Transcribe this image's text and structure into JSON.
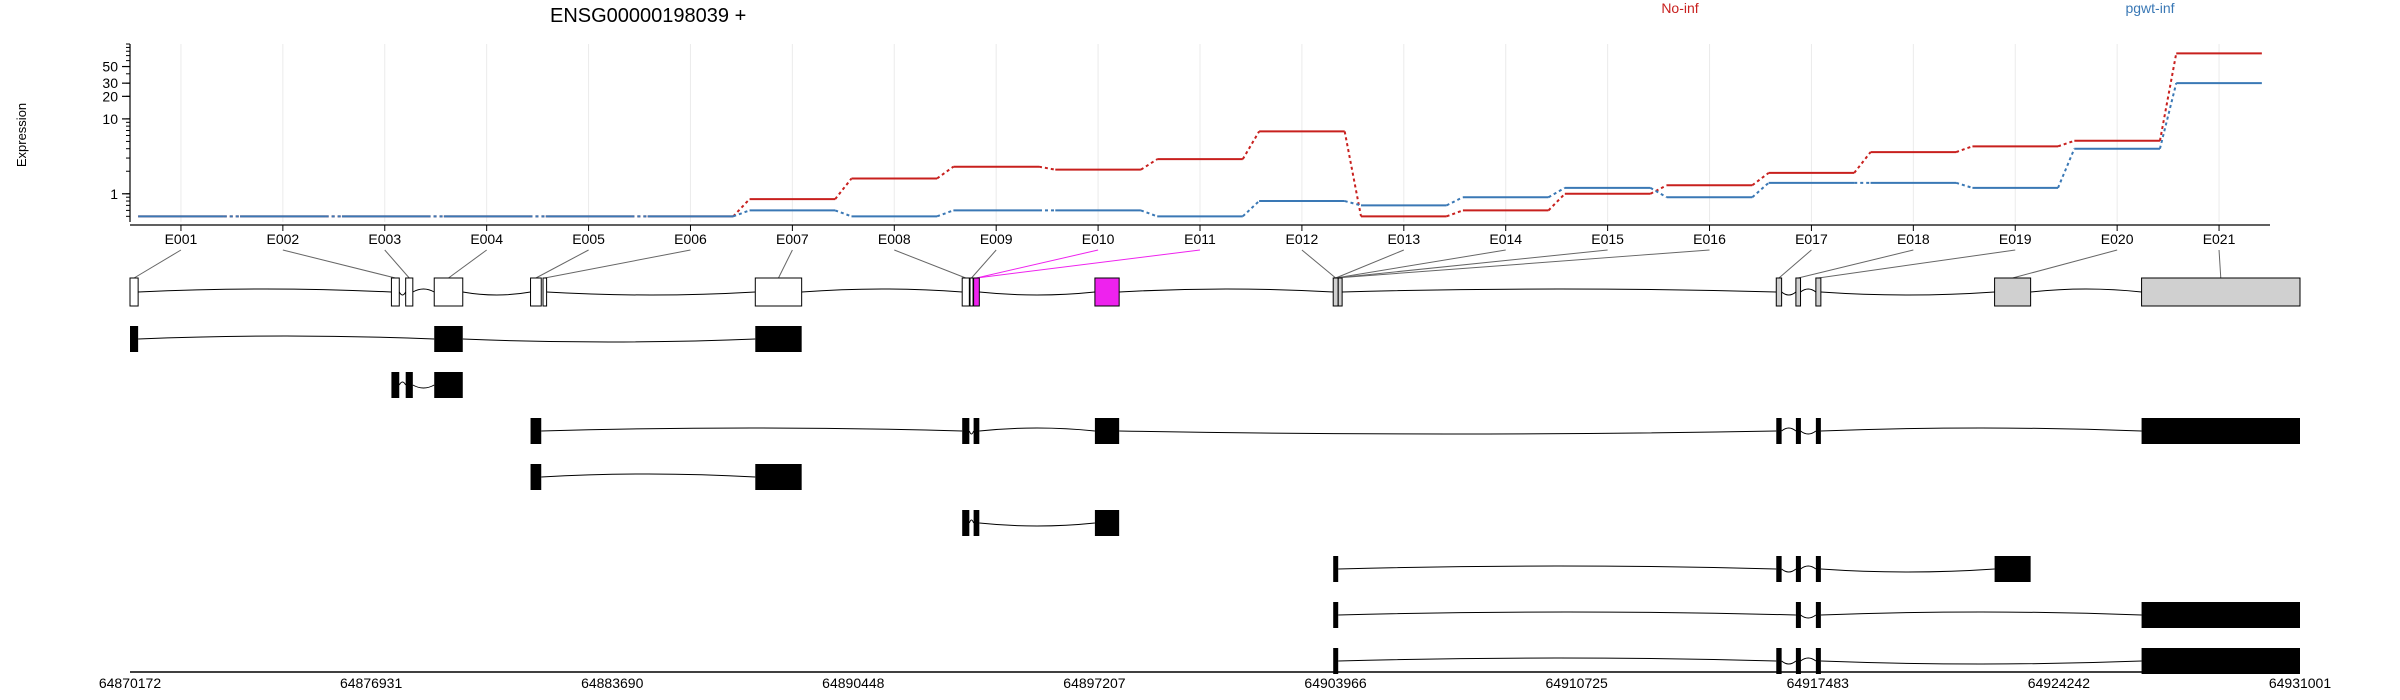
{
  "chart_data": {
    "type": "line",
    "title": "ENSG00000198039 +",
    "ylabel": "Expression",
    "y_scale": "log",
    "y_ticks": [
      1,
      10,
      20,
      30,
      50
    ],
    "y_range": [
      0.42,
      100
    ],
    "grid": true,
    "legend_position": "top",
    "exons": [
      "E001",
      "E002",
      "E003",
      "E004",
      "E005",
      "E006",
      "E007",
      "E008",
      "E009",
      "E010",
      "E011",
      "E012",
      "E013",
      "E014",
      "E015",
      "E016",
      "E017",
      "E018",
      "E019",
      "E020",
      "E021"
    ],
    "series": [
      {
        "name": "No-inf",
        "color": "#c8201e",
        "values": [
          0.5,
          0.5,
          0.5,
          0.5,
          0.5,
          0.5,
          0.85,
          1.6,
          2.3,
          2.1,
          2.9,
          6.8,
          0.5,
          0.6,
          1.0,
          1.3,
          1.9,
          3.6,
          4.3,
          5.1,
          75
        ]
      },
      {
        "name": "pgwt-inf",
        "color": "#3a78b5",
        "values": [
          0.5,
          0.5,
          0.5,
          0.5,
          0.5,
          0.5,
          0.6,
          0.5,
          0.6,
          0.6,
          0.5,
          0.8,
          0.7,
          0.9,
          1.2,
          0.9,
          1.4,
          1.4,
          1.2,
          4.0,
          30
        ]
      }
    ],
    "genome_start": 64870172,
    "genome_end": 64931001,
    "genome_ticks": [
      "64870172",
      "64876931",
      "64883690",
      "64890448",
      "64897207",
      "64903966",
      "64910725",
      "64917483",
      "64924242",
      "64931001"
    ],
    "highlight_color": "#ee22ee",
    "exon_fill_color": "#d0d0d0"
  }
}
